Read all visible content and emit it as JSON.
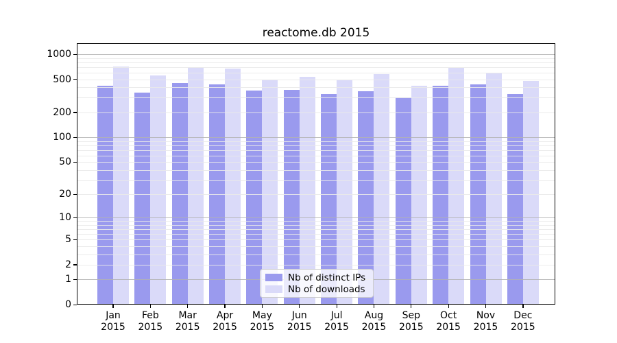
{
  "chart_data": {
    "type": "bar",
    "title": "reactome.db 2015",
    "categories": [
      "Jan",
      "Feb",
      "Mar",
      "Apr",
      "May",
      "Jun",
      "Jul",
      "Aug",
      "Sep",
      "Oct",
      "Nov",
      "Dec"
    ],
    "year": "2015",
    "series": [
      {
        "name": "Nb of distinct IPs",
        "color": "#9a9aee",
        "values": [
          419,
          349,
          455,
          438,
          369,
          374,
          334,
          360,
          302,
          419,
          438,
          336
        ]
      },
      {
        "name": "Nb of downloads",
        "color": "#dadaf9",
        "values": [
          707,
          560,
          698,
          673,
          497,
          539,
          490,
          575,
          416,
          682,
          597,
          481
        ]
      }
    ],
    "y_ticks": [
      0,
      1,
      2,
      5,
      10,
      20,
      50,
      100,
      200,
      500,
      1000
    ],
    "y_scale": "log10(1+y)",
    "ylim": [
      0,
      1355
    ],
    "xlabel": "",
    "ylabel": "",
    "grid": true,
    "legend_position": "lower center"
  },
  "colors": {
    "grid_major": "rgba(178,178,178,0.85)",
    "grid_minor": "rgba(233,233,233,0.9)",
    "axis": "#000000",
    "background": "#ffffff"
  }
}
